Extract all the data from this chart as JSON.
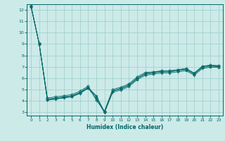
{
  "xlabel": "Humidex (Indice chaleur)",
  "xlim": [
    -0.5,
    23.5
  ],
  "ylim": [
    2.7,
    12.5
  ],
  "yticks": [
    3,
    4,
    5,
    6,
    7,
    8,
    9,
    10,
    11,
    12
  ],
  "xticks": [
    0,
    1,
    2,
    3,
    4,
    5,
    6,
    7,
    8,
    9,
    10,
    11,
    12,
    13,
    14,
    15,
    16,
    17,
    18,
    19,
    20,
    21,
    22,
    23
  ],
  "background_color": "#cceae8",
  "grid_color": "#99cccc",
  "line_color": "#006666",
  "series": [
    [
      12.3,
      9.0,
      4.15,
      4.25,
      4.35,
      4.45,
      4.75,
      5.2,
      4.35,
      3.05,
      4.85,
      5.05,
      5.35,
      5.95,
      6.35,
      6.45,
      6.55,
      6.55,
      6.65,
      6.75,
      6.35,
      6.95,
      7.05,
      7.0
    ],
    [
      12.3,
      9.0,
      4.05,
      4.15,
      4.25,
      4.35,
      4.65,
      5.1,
      4.2,
      2.95,
      4.75,
      4.95,
      5.25,
      5.85,
      6.25,
      6.35,
      6.45,
      6.45,
      6.55,
      6.65,
      6.25,
      6.85,
      6.95,
      6.95
    ],
    [
      12.3,
      9.0,
      4.25,
      4.35,
      4.45,
      4.55,
      4.85,
      5.3,
      4.05,
      3.1,
      5.0,
      5.2,
      5.5,
      6.1,
      6.5,
      6.55,
      6.65,
      6.65,
      6.75,
      6.85,
      6.45,
      7.05,
      7.15,
      7.1
    ],
    [
      12.3,
      9.0,
      4.1,
      4.2,
      4.3,
      4.4,
      4.7,
      5.15,
      4.45,
      3.0,
      4.9,
      5.1,
      5.4,
      6.0,
      6.4,
      6.5,
      6.6,
      6.6,
      6.7,
      6.8,
      6.4,
      7.0,
      7.1,
      7.05
    ]
  ],
  "markers": [
    "^",
    "v",
    "D",
    "o"
  ],
  "marker_sizes": [
    2.5,
    2.5,
    2.0,
    2.0
  ]
}
